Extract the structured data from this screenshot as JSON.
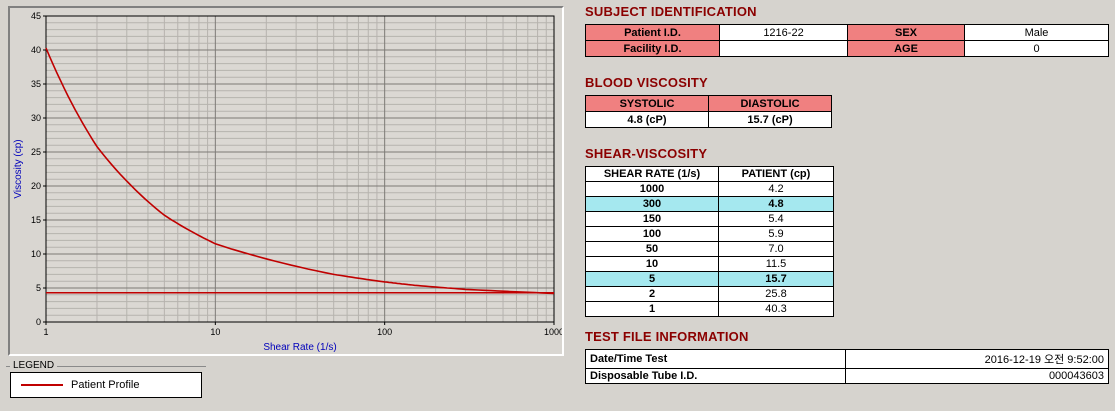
{
  "colors": {
    "background": "#d6d3ce",
    "section_title": "#8b0000",
    "table_header_bg": "#f08080",
    "highlight_bg": "#a5e8ef",
    "curve": "#c00000",
    "axis_label": "#0000bb"
  },
  "chart_data": {
    "type": "line",
    "title": "",
    "xlabel": "Shear Rate (1/s)",
    "ylabel": "Viscosity (cp)",
    "x_scale": "log",
    "xlim": [
      1,
      1000
    ],
    "ylim": [
      0,
      45
    ],
    "x_ticks": [
      1,
      10,
      100,
      1000
    ],
    "y_ticks": [
      0,
      5,
      10,
      15,
      20,
      25,
      30,
      35,
      40,
      45
    ],
    "grid": "on",
    "x": [
      1,
      2,
      5,
      10,
      50,
      100,
      150,
      300,
      1000
    ],
    "series": [
      {
        "name": "Patient Profile",
        "values": [
          40.3,
          25.8,
          15.7,
          11.5,
          7.0,
          5.9,
          5.4,
          4.8,
          4.2
        ]
      }
    ],
    "horizontal_line": 4.3,
    "legend_position": "below-left"
  },
  "legend": {
    "title": "LEGEND",
    "items": [
      {
        "label": "Patient Profile"
      }
    ]
  },
  "subject_identification": {
    "title": "SUBJECT IDENTIFICATION",
    "rows": [
      {
        "label1": "Patient I.D.",
        "value1": "1216-22",
        "label2": "SEX",
        "value2": "Male"
      },
      {
        "label1": "Facility I.D.",
        "value1": "",
        "label2": "AGE",
        "value2": "0"
      }
    ]
  },
  "blood_viscosity": {
    "title": "BLOOD VISCOSITY",
    "headers": [
      "SYSTOLIC",
      "DIASTOLIC"
    ],
    "values": [
      "4.8 (cP)",
      "15.7 (cP)"
    ]
  },
  "shear_viscosity": {
    "title": "SHEAR-VISCOSITY",
    "headers": [
      "SHEAR RATE (1/s)",
      "PATIENT (cp)"
    ],
    "rows": [
      {
        "rate": "1000",
        "value": "4.2",
        "highlight": false
      },
      {
        "rate": "300",
        "value": "4.8",
        "highlight": true
      },
      {
        "rate": "150",
        "value": "5.4",
        "highlight": false
      },
      {
        "rate": "100",
        "value": "5.9",
        "highlight": false
      },
      {
        "rate": "50",
        "value": "7.0",
        "highlight": false
      },
      {
        "rate": "10",
        "value": "11.5",
        "highlight": false
      },
      {
        "rate": "5",
        "value": "15.7",
        "highlight": true
      },
      {
        "rate": "2",
        "value": "25.8",
        "highlight": false
      },
      {
        "rate": "1",
        "value": "40.3",
        "highlight": false
      }
    ]
  },
  "test_file_information": {
    "title": "TEST FILE INFORMATION",
    "rows": [
      {
        "label": "Date/Time Test",
        "value": "2016-12-19  오전 9:52:00"
      },
      {
        "label": "Disposable Tube I.D.",
        "value": "000043603"
      }
    ]
  }
}
